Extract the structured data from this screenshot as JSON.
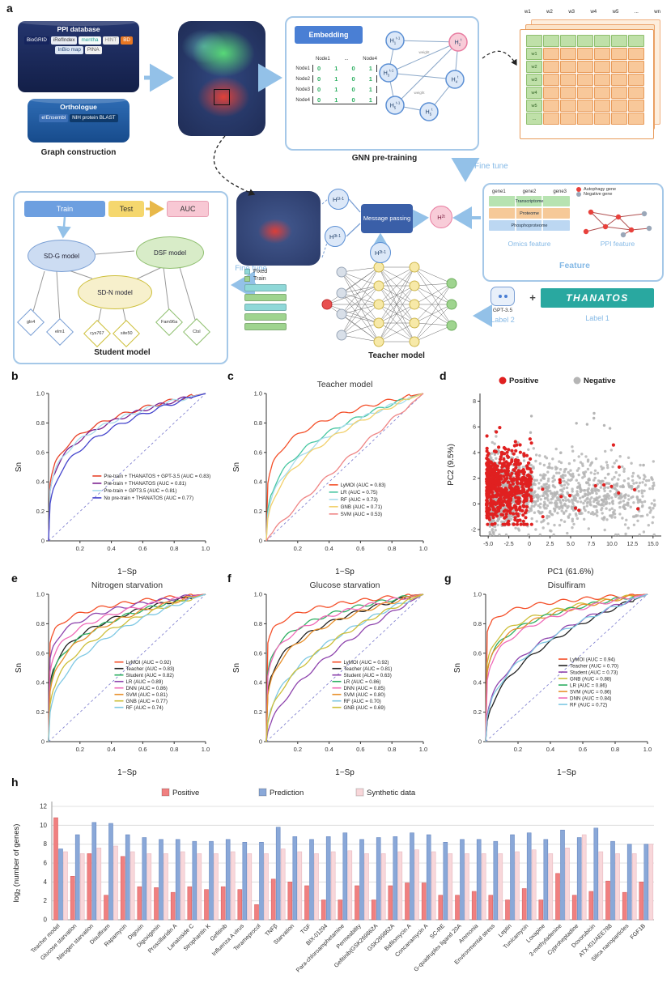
{
  "panels": {
    "a": "a",
    "b": "b",
    "c": "c",
    "d": "d",
    "e": "e",
    "f": "f",
    "g": "g",
    "h": "h"
  },
  "panel_a": {
    "ppi_database": {
      "title": "PPI database",
      "chips": [
        {
          "label": "BioGRID",
          "bg": "#16255e",
          "fg": "#ffffff"
        },
        {
          "label": "iRefIndex",
          "bg": "#e9edf5",
          "fg": "#333333"
        },
        {
          "label": "mentha",
          "bg": "#f5fbfa",
          "fg": "#2aa198"
        },
        {
          "label": "HINT",
          "bg": "#eeeeee",
          "fg": "#8a8a8a"
        },
        {
          "label": "BD",
          "bg": "#e87722",
          "fg": "#ffffff"
        },
        {
          "label": "InBio map",
          "bg": "#dce6f4",
          "fg": "#2b4a7a"
        },
        {
          "label": "PINA",
          "bg": "#f2f2f2",
          "fg": "#555555"
        }
      ]
    },
    "orthologue": {
      "title": "Orthologue",
      "chips": [
        {
          "label": "e!Ensembl",
          "bg": "#3b6fb6",
          "fg": "#ffffff"
        },
        {
          "label": "NIH protein BLAST",
          "bg": "#0f3a6b",
          "fg": "#ffffff"
        }
      ]
    },
    "graph_construction_label": "Graph construction",
    "gnn": {
      "embedding_label": "Embedding",
      "matrix_header": [
        "Node1",
        "...",
        "Node4"
      ],
      "matrix_rows": [
        "Node1",
        "Node2",
        "Node3",
        "Node4"
      ],
      "matrix_values": [
        "0",
        "1",
        "0",
        "1"
      ],
      "edge_label": "weight",
      "nodes_left": [
        {
          "sub": "1",
          "sup": "t-1"
        },
        {
          "sub": "3",
          "sup": "t-1"
        },
        {
          "sub": "5",
          "sup": "t-1"
        }
      ],
      "nodes_right": [
        {
          "sub": "2",
          "sup": "t"
        },
        {
          "sub": "4",
          "sup": "t"
        },
        {
          "sub": "5",
          "sup": "t"
        }
      ],
      "pretraining_label": "GNN pre-training"
    },
    "weight_matrix": {
      "labels": [
        "w1",
        "w2",
        "w3",
        "w4",
        "w5",
        "...",
        "wn"
      ]
    },
    "fine_tune_right": "Fine tune",
    "fine_tune_left": "Fine tune",
    "message_passing": {
      "box_label": "Message passing",
      "left_nodes": [
        {
          "sub": "1",
          "sup": "t-1"
        },
        {
          "sub": "3",
          "sup": "t-1"
        }
      ],
      "bottom_node": {
        "sub": "2",
        "sup": "t-1"
      },
      "right_node": {
        "sub": "2",
        "sup": "t"
      }
    },
    "feature": {
      "genes_header": [
        "gene1",
        "gene2",
        "gene3"
      ],
      "omics_rows": [
        {
          "label": "Transcriptome",
          "bg": "#b7e3b1"
        },
        {
          "label": "Proteome",
          "bg": "#f6c998"
        },
        {
          "label": "Phosphoproteome",
          "bg": "#bcd7f2"
        }
      ],
      "omics_label": "Omics feature",
      "ppi_label": "PPI feature",
      "legend": [
        {
          "label": "Autophagy gene",
          "color": "#e8413c"
        },
        {
          "label": "Negative gene",
          "color": "#9aa7b8"
        }
      ],
      "feature_label": "Feature"
    },
    "teacher": {
      "legend_fixed": "Fixed",
      "legend_train": "Train",
      "fixed_color": "#8fd8d8",
      "train_color": "#9fd48f",
      "bar_pattern": [
        "fixed",
        "train",
        "fixed",
        "train",
        "train"
      ],
      "label": "Teacher model"
    },
    "labels_row": {
      "gpt": "GPT-3.5",
      "label2": "Label 2",
      "plus": "+",
      "thanatos": "THANATOS",
      "label1": "Label 1"
    },
    "student": {
      "train": "Train",
      "test": "Test",
      "auc": "AUC",
      "models": [
        "SD-G model",
        "DSF model",
        "SD-N model"
      ],
      "diamonds": [
        "gln4",
        "elm1",
        "cys767",
        "site50",
        "Fam96a",
        "Ctsl"
      ],
      "label": "Student model"
    }
  },
  "chart_data": [
    {
      "id": "b",
      "type": "line",
      "subtype": "roc",
      "title": "",
      "xlabel": "1−Sp",
      "ylabel": "Sn",
      "xlim": [
        0,
        1
      ],
      "ylim": [
        0,
        1
      ],
      "xticks": [
        "0.2",
        "0.4",
        "0.6",
        "0.8",
        "1.0"
      ],
      "yticks": [
        "0",
        "0.2",
        "0.4",
        "0.6",
        "0.8",
        "1.0"
      ],
      "legend_pos": [
        0.28,
        0.56
      ],
      "series": [
        {
          "name": "Pre-train + THANATOS + GPT-3.5 (AUC = 0.83)",
          "auc": 0.83,
          "color": "#e8432a"
        },
        {
          "name": "Pre-train + THANATOS (AUC = 0.81)",
          "auc": 0.81,
          "color": "#7a1f8e"
        },
        {
          "name": "Pre-train + GPT3.5 (AUC = 0.81)",
          "auc": 0.81,
          "color": "#a8dcec"
        },
        {
          "name": "No pre-train + THANATOS (AUC = 0.77)",
          "auc": 0.77,
          "color": "#4444cc"
        }
      ]
    },
    {
      "id": "c",
      "type": "line",
      "subtype": "roc",
      "title": "Teacher model",
      "xlabel": "1−Sp",
      "ylabel": "Sn",
      "xlim": [
        0,
        1
      ],
      "ylim": [
        0,
        1
      ],
      "xticks": [
        "0.2",
        "0.4",
        "0.6",
        "0.8",
        "1.0"
      ],
      "yticks": [
        "0",
        "0.2",
        "0.4",
        "0.6",
        "0.8",
        "1.0"
      ],
      "legend_pos": [
        0.4,
        0.62
      ],
      "series": [
        {
          "name": "LyMOI (AUC = 0.83)",
          "auc": 0.83,
          "color": "#f4502a"
        },
        {
          "name": "LR (AUC = 0.75)",
          "auc": 0.75,
          "color": "#45c6a0"
        },
        {
          "name": "RF (AUC = 0.73)",
          "auc": 0.73,
          "color": "#a8dcec"
        },
        {
          "name": "GNB (AUC = 0.71)",
          "auc": 0.71,
          "color": "#f2d06b"
        },
        {
          "name": "SVM (AUC = 0.53)",
          "auc": 0.53,
          "color": "#ef8585"
        }
      ]
    },
    {
      "id": "d",
      "type": "scatter",
      "title": "",
      "xlabel": "PC1 (61.6%)",
      "ylabel": "PC2 (9.5%)",
      "xlim": [
        -6,
        16
      ],
      "ylim": [
        -2.5,
        8.6
      ],
      "xticks": [
        "-5.0",
        "-2.5",
        "0",
        "2.5",
        "5.0",
        "7.5",
        "10.0",
        "12.5",
        "15.0"
      ],
      "xtick_vals": [
        -5,
        -2.5,
        0,
        2.5,
        5,
        7.5,
        10,
        12.5,
        15
      ],
      "yticks": [
        "-2",
        "0",
        "2",
        "4",
        "6",
        "8"
      ],
      "ytick_vals": [
        -2,
        0,
        2,
        4,
        6,
        8
      ],
      "legend": [
        {
          "name": "Positive",
          "color": "#e02020"
        },
        {
          "name": "Negative",
          "color": "#b5b5b5"
        }
      ],
      "clusters": {
        "negative": {
          "n": 1600,
          "x_min": -4.8,
          "x_span": 20,
          "x_pow": 2.6,
          "y_mean": 0.9,
          "y_sd": 1.35,
          "outliers": 8,
          "outlier_xmax": 13,
          "outlier_ymin": 5,
          "outlier_ymax": 8.2
        },
        "positive": {
          "n": 620,
          "x_min": -5.2,
          "x_span": 5.5,
          "x_pow": 1.6,
          "y_mean": 1.3,
          "y_sd": 1.5,
          "outliers": 16,
          "outlier_xmax": 12.8
        }
      }
    },
    {
      "id": "e",
      "type": "line",
      "subtype": "roc",
      "title": "Nitrogen starvation",
      "xlabel": "1−Sp",
      "ylabel": "Sn",
      "xlim": [
        0,
        1
      ],
      "ylim": [
        0,
        1
      ],
      "xticks": [
        "0.2",
        "0.4",
        "0.6",
        "0.8",
        "1.0"
      ],
      "yticks": [
        "0",
        "0.2",
        "0.4",
        "0.6",
        "0.8",
        "1.0"
      ],
      "legend_pos": [
        0.42,
        0.46
      ],
      "series": [
        {
          "name": "LyMOI (AUC = 0.92)",
          "auc": 0.92,
          "color": "#f4502a"
        },
        {
          "name": "Teacher (AUC = 0.83)",
          "auc": 0.83,
          "color": "#222222"
        },
        {
          "name": "Student (AUC = 0.82)",
          "auc": 0.82,
          "color": "#2eaf62"
        },
        {
          "name": "LR (AUC = 0.89)",
          "auc": 0.89,
          "color": "#8e44ad"
        },
        {
          "name": "DNN (AUC = 0.86)",
          "auc": 0.86,
          "color": "#ef6ab8"
        },
        {
          "name": "SVM (AUC = 0.81)",
          "auc": 0.81,
          "color": "#e8902c"
        },
        {
          "name": "GNB (AUC = 0.77)",
          "auc": 0.77,
          "color": "#cdbf3a"
        },
        {
          "name": "RF (AUC = 0.74)",
          "auc": 0.74,
          "color": "#7ec8e3"
        }
      ]
    },
    {
      "id": "f",
      "type": "line",
      "subtype": "roc",
      "title": "Glucose starvation",
      "xlabel": "1−Sp",
      "ylabel": "Sn",
      "xlim": [
        0,
        1
      ],
      "ylim": [
        0,
        1
      ],
      "xticks": [
        "0.2",
        "0.4",
        "0.6",
        "0.8",
        "1.0"
      ],
      "yticks": [
        "0",
        "0.2",
        "0.4",
        "0.6",
        "0.8",
        "1.0"
      ],
      "legend_pos": [
        0.42,
        0.46
      ],
      "series": [
        {
          "name": "LyMOI (AUC = 0.92)",
          "auc": 0.92,
          "color": "#f4502a"
        },
        {
          "name": "Teacher (AUC = 0.81)",
          "auc": 0.81,
          "color": "#222222"
        },
        {
          "name": "Student (AUC = 0.63)",
          "auc": 0.63,
          "color": "#8e44ad"
        },
        {
          "name": "LR (AUC = 0.86)",
          "auc": 0.86,
          "color": "#2eaf62"
        },
        {
          "name": "DNN (AUC = 0.85)",
          "auc": 0.85,
          "color": "#ef6ab8"
        },
        {
          "name": "SVM (AUC = 0.80)",
          "auc": 0.8,
          "color": "#e8902c"
        },
        {
          "name": "RF (AUC = 0.70)",
          "auc": 0.7,
          "color": "#7ec8e3"
        },
        {
          "name": "GNB (AUC = 0.69)",
          "auc": 0.69,
          "color": "#cdbf3a"
        }
      ]
    },
    {
      "id": "g",
      "type": "line",
      "subtype": "roc",
      "title": "Disulfiram",
      "xlabel": "1−Sp",
      "ylabel": "Sn",
      "xlim": [
        0,
        1
      ],
      "ylim": [
        0,
        1
      ],
      "xticks": [
        "0.2",
        "0.4",
        "0.6",
        "0.8",
        "1.0"
      ],
      "yticks": [
        "0",
        "0.2",
        "0.4",
        "0.6",
        "0.8",
        "1.0"
      ],
      "legend_pos": [
        0.45,
        0.44
      ],
      "series": [
        {
          "name": "LyMOI (AUC = 0.94)",
          "auc": 0.94,
          "color": "#f4502a"
        },
        {
          "name": "Teacher (AUC = 0.70)",
          "auc": 0.7,
          "color": "#222222"
        },
        {
          "name": "Student (AUC = 0.73)",
          "auc": 0.73,
          "color": "#8e44ad"
        },
        {
          "name": "GNB (AUC = 0.88)",
          "auc": 0.88,
          "color": "#cdbf3a"
        },
        {
          "name": "LR (AUC = 0.86)",
          "auc": 0.86,
          "color": "#2eaf62"
        },
        {
          "name": "SVM (AUC = 0.86)",
          "auc": 0.86,
          "color": "#e8902c"
        },
        {
          "name": "DNN (AUC = 0.84)",
          "auc": 0.84,
          "color": "#ef6ab8"
        },
        {
          "name": "RF (AUC = 0.72)",
          "auc": 0.72,
          "color": "#7ec8e3"
        }
      ]
    },
    {
      "id": "h",
      "type": "bar",
      "title": "",
      "ylabel_pre": "log",
      "ylabel_sub": "2",
      "ylabel_post": " (number of genes)",
      "ylim": [
        0,
        12
      ],
      "yticks": [
        0,
        2,
        4,
        6,
        8,
        10,
        12
      ],
      "legend": [
        {
          "name": "Positive",
          "color": "#f08080"
        },
        {
          "name": "Prediction",
          "color": "#8aa8d8"
        },
        {
          "name": "Synthetic data",
          "color": "#f8d7da"
        }
      ],
      "categories": [
        "Teacher model",
        "Glucose starvation",
        "Nitrogen starvation",
        "Disulfiram",
        "Rapamycin",
        "Digoxin",
        "Digoxigenin",
        "Proscillaridin A",
        "Lanatoside C",
        "Strophantin K",
        "Gefitinib",
        "Influenza A virus",
        "Terameprocol",
        "TNFβ",
        "Starvation",
        "TGF",
        "BIX-01294",
        "Para-chloroamphetamine",
        "Permeability",
        "Gefitinib(GSK269862A",
        "GSK269862A",
        "Bafilomycin A",
        "Concanamycin A",
        "SC-RE",
        "G-quadruplex ligand 20A",
        "Ammonia",
        "Environmental stress",
        "Leptin",
        "Tunicamycin",
        "Loxapine",
        "3-methyladenine",
        "Cyproheptadine",
        "Doxorubicin",
        "ATX-f01/AEE788",
        "Silica nanoparticles",
        "FGF1B"
      ],
      "series": [
        {
          "name": "Positive",
          "color": "#f08080",
          "stroke": "#d86060",
          "values": [
            10.8,
            4.6,
            7.0,
            2.6,
            6.7,
            3.5,
            3.4,
            2.9,
            3.5,
            3.2,
            3.5,
            3.2,
            1.6,
            4.3,
            4.0,
            3.6,
            2.1,
            2.1,
            3.6,
            2.1,
            3.6,
            3.9,
            3.9,
            2.6,
            2.6,
            3.0,
            2.6,
            2.1,
            3.3,
            2.1,
            4.9,
            2.6,
            3.0,
            4.1,
            2.9,
            4.0
          ]
        },
        {
          "name": "Prediction",
          "color": "#8aa8d8",
          "stroke": "#6888c0",
          "values": [
            7.5,
            9.0,
            10.3,
            10.2,
            9.0,
            8.7,
            8.5,
            8.5,
            8.3,
            8.3,
            8.5,
            8.2,
            8.2,
            9.8,
            8.8,
            8.5,
            8.8,
            9.2,
            8.5,
            8.7,
            8.8,
            9.2,
            9.0,
            8.2,
            8.5,
            8.5,
            8.3,
            9.0,
            9.2,
            8.5,
            9.5,
            8.7,
            9.7,
            8.3,
            8.0,
            8.0
          ]
        },
        {
          "name": "Synthetic data",
          "color": "#f8d7da",
          "stroke": "#e8b8c0",
          "values": [
            7.2,
            7.0,
            7.6,
            7.8,
            7.2,
            7.0,
            7.0,
            7.2,
            7.0,
            7.0,
            7.2,
            7.0,
            7.0,
            7.5,
            7.2,
            7.0,
            7.2,
            7.3,
            7.0,
            7.0,
            7.2,
            7.4,
            7.2,
            7.0,
            7.0,
            7.0,
            7.0,
            7.2,
            7.4,
            7.0,
            7.6,
            9.0,
            7.2,
            7.0,
            7.0,
            8.0
          ]
        }
      ]
    }
  ]
}
